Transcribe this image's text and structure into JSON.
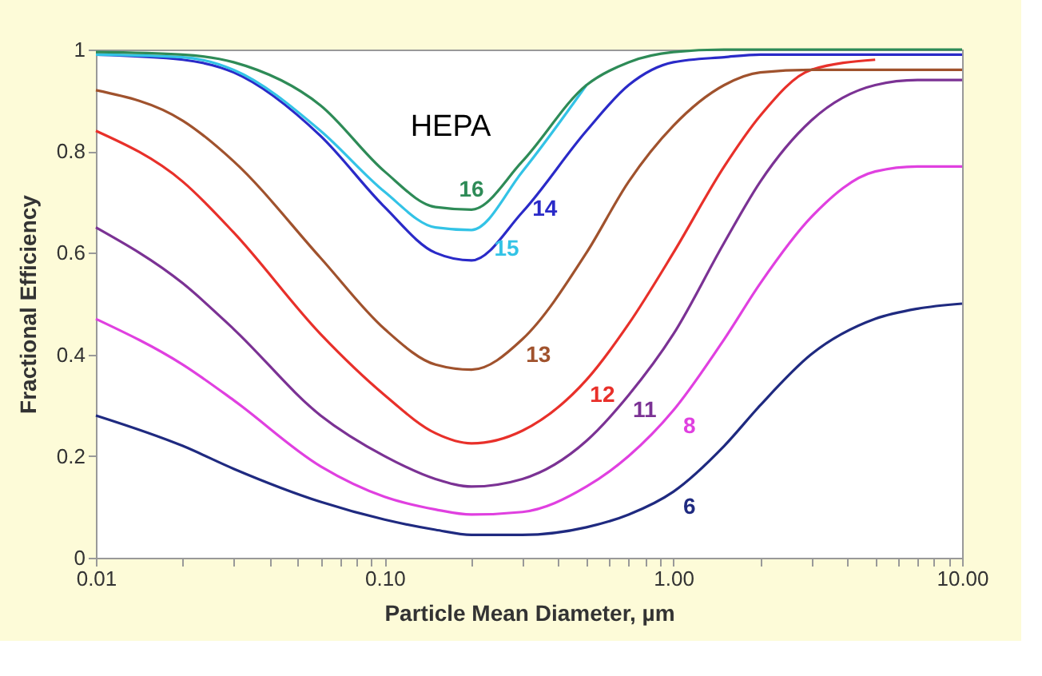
{
  "chart_data": {
    "type": "line",
    "xlabel": "Particle Mean Diameter, µm",
    "ylabel": "Fractional Efficiency",
    "log": "x",
    "xlim": [
      0.01,
      10
    ],
    "ylim": [
      0,
      1
    ],
    "xticks": [
      {
        "value": 0.01,
        "label": "0.01"
      },
      {
        "value": 0.02,
        "label": null
      },
      {
        "value": 0.03,
        "label": null
      },
      {
        "value": 0.04,
        "label": null
      },
      {
        "value": 0.05,
        "label": null
      },
      {
        "value": 0.06,
        "label": null
      },
      {
        "value": 0.07,
        "label": null
      },
      {
        "value": 0.08,
        "label": null
      },
      {
        "value": 0.09,
        "label": null
      },
      {
        "value": 0.1,
        "label": "0.10"
      },
      {
        "value": 0.2,
        "label": null
      },
      {
        "value": 0.3,
        "label": null
      },
      {
        "value": 0.4,
        "label": null
      },
      {
        "value": 0.5,
        "label": null
      },
      {
        "value": 0.6,
        "label": null
      },
      {
        "value": 0.7,
        "label": null
      },
      {
        "value": 0.8,
        "label": null
      },
      {
        "value": 0.9,
        "label": null
      },
      {
        "value": 1,
        "label": "1.00"
      },
      {
        "value": 2,
        "label": null
      },
      {
        "value": 3,
        "label": null
      },
      {
        "value": 4,
        "label": null
      },
      {
        "value": 5,
        "label": null
      },
      {
        "value": 6,
        "label": null
      },
      {
        "value": 7,
        "label": null
      },
      {
        "value": 8,
        "label": null
      },
      {
        "value": 9,
        "label": null
      },
      {
        "value": 10,
        "label": "10.00"
      }
    ],
    "yticks": [
      0,
      {
        "value": 0.2,
        "label": "0.2"
      },
      {
        "value": 0.4,
        "label": "0.4"
      },
      {
        "value": 0.6,
        "label": "0.6"
      },
      {
        "value": 0.8,
        "label": "0.8"
      },
      1
    ],
    "grid": false,
    "marker": "none",
    "line_style": "solid",
    "x": [
      0.01,
      0.02,
      0.03,
      0.06,
      0.1,
      0.15,
      0.2,
      0.3,
      0.5,
      0.7,
      1,
      1.5,
      2,
      3,
      5,
      7,
      10
    ],
    "series": [
      {
        "name": "16",
        "color": "#2e8b57",
        "values": [
          0.995,
          0.99,
          0.975,
          0.89,
          0.76,
          0.69,
          0.685,
          0.78,
          0.93,
          0.975,
          0.995,
          1,
          1,
          1,
          1,
          1,
          1
        ]
      },
      {
        "name": "15",
        "color": "#33c3e6",
        "values": [
          0.99,
          0.985,
          0.96,
          0.84,
          0.72,
          0.65,
          0.645,
          0.76,
          0.93,
          null,
          null,
          null,
          null,
          null,
          null,
          null,
          null
        ]
      },
      {
        "name": "14",
        "color": "#2a2ac8",
        "values": [
          0.99,
          0.98,
          0.955,
          0.83,
          0.69,
          0.6,
          0.585,
          0.68,
          0.84,
          0.93,
          0.975,
          0.985,
          0.99,
          0.99,
          0.99,
          0.99,
          0.99
        ]
      },
      {
        "name": "13",
        "color": "#a0522d",
        "values": [
          0.92,
          0.86,
          0.78,
          0.59,
          0.45,
          0.38,
          0.37,
          0.43,
          0.6,
          0.74,
          0.85,
          0.93,
          0.955,
          0.96,
          0.96,
          0.96,
          0.96
        ]
      },
      {
        "name": "12",
        "color": "#e8302a",
        "values": [
          0.84,
          0.74,
          0.64,
          0.44,
          0.32,
          0.245,
          0.225,
          0.25,
          0.35,
          0.46,
          0.6,
          0.77,
          0.87,
          0.96,
          0.98,
          null,
          null
        ]
      },
      {
        "name": "11",
        "color": "#7b3294",
        "values": [
          0.65,
          0.54,
          0.45,
          0.28,
          0.2,
          0.155,
          0.14,
          0.155,
          0.23,
          0.32,
          0.44,
          0.62,
          0.74,
          0.86,
          0.93,
          0.94,
          0.94
        ]
      },
      {
        "name": "8",
        "color": "#e040e0",
        "values": [
          0.47,
          0.38,
          0.31,
          0.18,
          0.12,
          0.095,
          0.085,
          0.09,
          0.14,
          0.2,
          0.29,
          0.43,
          0.54,
          0.67,
          0.76,
          0.77,
          0.77
        ]
      },
      {
        "name": "6",
        "color": "#1f2a80",
        "values": [
          0.28,
          0.22,
          0.175,
          0.11,
          0.075,
          0.055,
          0.045,
          0.045,
          0.06,
          0.085,
          0.13,
          0.22,
          0.3,
          0.4,
          0.47,
          0.49,
          0.5
        ]
      }
    ],
    "annotations": [
      "HEPA"
    ]
  }
}
